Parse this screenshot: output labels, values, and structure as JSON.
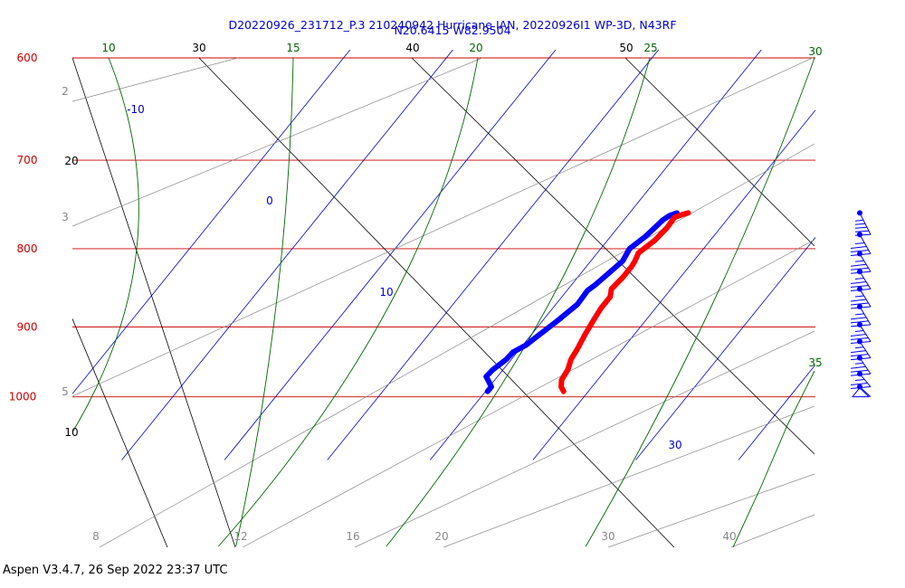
{
  "chart_data": {
    "type": "skew-t",
    "title_line1": "D20220926_231712_P.3 210240942 Hurricane IAN, 20220926I1 WP-3D, N43RF",
    "title_line2": "N20.6415 W82.9504",
    "colors": {
      "isobar": "#cc0000",
      "isotherm": "#0000cc",
      "dry_adiabat": "#000000",
      "moist_adiabat": "#888888",
      "mixing_ratio": "#006600",
      "temperature": "#ff0000",
      "dewpoint": "#0000ff",
      "wind_barbs": "#0000ff"
    },
    "pressure_labels": [
      "600",
      "700",
      "800",
      "900",
      "1000"
    ],
    "isotherm_labels": [
      "-10",
      "0",
      "10",
      "30"
    ],
    "mixing_ratio_labels": [
      "10",
      "15",
      "20",
      "25",
      "30",
      "35"
    ],
    "dry_adiabat_labels": [
      "30",
      "40",
      "50",
      "20",
      "10"
    ],
    "moist_adiabat_labels": [
      "2",
      "3",
      "5",
      "8",
      "12",
      "16",
      "20",
      "30",
      "40"
    ],
    "temperature_profile": [
      {
        "p": 758,
        "t": 15.7
      },
      {
        "p": 760,
        "t": 15.2
      },
      {
        "p": 763,
        "t": 14.7
      },
      {
        "p": 775,
        "t": 14.8
      },
      {
        "p": 790,
        "t": 14.6
      },
      {
        "p": 805,
        "t": 14.0
      },
      {
        "p": 815,
        "t": 14.3
      },
      {
        "p": 822,
        "t": 14.4
      },
      {
        "p": 835,
        "t": 14.4
      },
      {
        "p": 850,
        "t": 14.2
      },
      {
        "p": 860,
        "t": 14.7
      },
      {
        "p": 875,
        "t": 14.7
      },
      {
        "p": 890,
        "t": 14.9
      },
      {
        "p": 910,
        "t": 15.2
      },
      {
        "p": 930,
        "t": 15.6
      },
      {
        "p": 945,
        "t": 15.8
      },
      {
        "p": 960,
        "t": 16.3
      },
      {
        "p": 975,
        "t": 16.5
      },
      {
        "p": 985,
        "t": 17.0
      },
      {
        "p": 992,
        "t": 17.6
      }
    ],
    "dewpoint_profile": [
      {
        "p": 758,
        "t": 14.6
      },
      {
        "p": 761,
        "t": 14.1
      },
      {
        "p": 766,
        "t": 13.8
      },
      {
        "p": 785,
        "t": 13.4
      },
      {
        "p": 800,
        "t": 12.8
      },
      {
        "p": 815,
        "t": 13.1
      },
      {
        "p": 830,
        "t": 12.7
      },
      {
        "p": 845,
        "t": 12.3
      },
      {
        "p": 852,
        "t": 12.0
      },
      {
        "p": 870,
        "t": 12.1
      },
      {
        "p": 890,
        "t": 11.5
      },
      {
        "p": 910,
        "t": 10.8
      },
      {
        "p": 925,
        "t": 10.3
      },
      {
        "p": 935,
        "t": 9.6
      },
      {
        "p": 945,
        "t": 9.5
      },
      {
        "p": 960,
        "t": 9.0
      },
      {
        "p": 970,
        "t": 8.9
      },
      {
        "p": 978,
        "t": 9.6
      },
      {
        "p": 985,
        "t": 10.2
      },
      {
        "p": 992,
        "t": 10.2
      }
    ],
    "wind_barbs": [
      {
        "p": 758,
        "flags": 0,
        "full": 0,
        "half": 5
      },
      {
        "p": 783,
        "flags": 0,
        "full": 3,
        "half": 1
      },
      {
        "p": 806,
        "flags": 0,
        "full": 3,
        "half": 1
      },
      {
        "p": 828,
        "flags": 0,
        "full": 3,
        "half": 1
      },
      {
        "p": 850,
        "flags": 0,
        "full": 3,
        "half": 1
      },
      {
        "p": 873,
        "flags": 0,
        "full": 3,
        "half": 1
      },
      {
        "p": 897,
        "flags": 0,
        "full": 3,
        "half": 1
      },
      {
        "p": 920,
        "flags": 0,
        "full": 3,
        "half": 1
      },
      {
        "p": 943,
        "flags": 0,
        "full": 3,
        "half": 1
      },
      {
        "p": 966,
        "flags": 0,
        "full": 2,
        "half": 1
      },
      {
        "p": 985,
        "flags": 1,
        "full": 0,
        "half": 0
      }
    ]
  },
  "footer": "Aspen V3.4.7, 26 Sep 2022  23:37 UTC"
}
